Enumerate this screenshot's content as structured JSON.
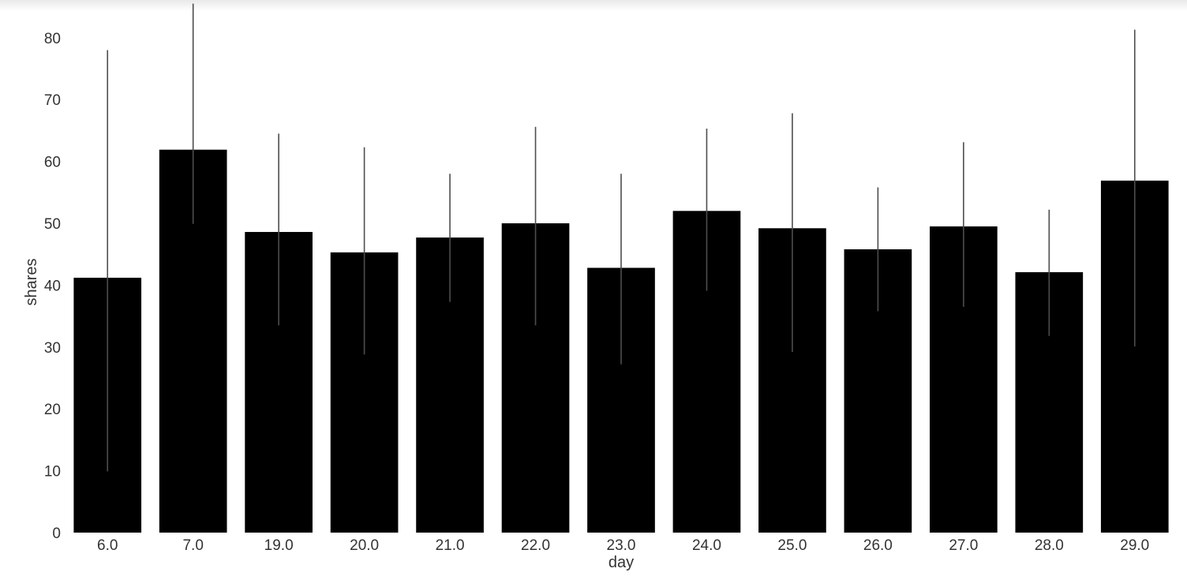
{
  "chart_data": {
    "type": "bar",
    "categories": [
      "6.0",
      "7.0",
      "19.0",
      "20.0",
      "21.0",
      "22.0",
      "23.0",
      "24.0",
      "25.0",
      "26.0",
      "27.0",
      "28.0",
      "29.0"
    ],
    "values": [
      41.2,
      61.9,
      48.6,
      45.3,
      47.7,
      50.0,
      42.8,
      52.0,
      49.2,
      45.8,
      49.5,
      42.1,
      56.9
    ],
    "error_bars": [
      [
        9.9,
        78.0
      ],
      [
        49.9,
        85.5
      ],
      [
        33.5,
        64.5
      ],
      [
        28.8,
        62.3
      ],
      [
        37.3,
        58.0
      ],
      [
        33.5,
        65.6
      ],
      [
        27.2,
        58.0
      ],
      [
        39.1,
        65.3
      ],
      [
        29.2,
        67.8
      ],
      [
        35.8,
        55.8
      ],
      [
        36.5,
        63.1
      ],
      [
        31.8,
        52.2
      ],
      [
        30.1,
        81.3
      ]
    ],
    "xlabel": "day",
    "ylabel": "shares",
    "ylim": [
      0,
      85
    ],
    "yticks": [
      0,
      10,
      20,
      30,
      40,
      50,
      60,
      70,
      80
    ],
    "grid": false,
    "bar_color": "#000000",
    "errorbar_color": "#4d4d4d",
    "text_color": "#333333",
    "background": "#ffffff"
  }
}
